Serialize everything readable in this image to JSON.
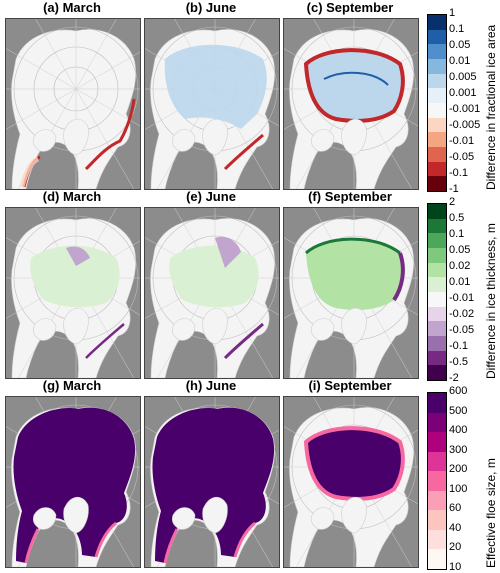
{
  "rows": [
    {
      "id": "area",
      "panels": [
        {
          "title": "(a) March"
        },
        {
          "title": "(b) June"
        },
        {
          "title": "(c) September"
        }
      ],
      "colorbar": {
        "label": "Difference in fractional ice area",
        "ticks": [
          "1",
          "0.1",
          "0.05",
          "0.01",
          "0.005",
          "0.001",
          "-0.001",
          "-0.005",
          "-0.01",
          "-0.05",
          "-0.1",
          "-1"
        ],
        "colors": [
          "#08306b",
          "#1f5fa8",
          "#4f8fcc",
          "#86b8dd",
          "#bcd7ec",
          "#e6f0f8",
          "#f7f7f7",
          "#fbd6c2",
          "#f4a582",
          "#e0654f",
          "#c2282a",
          "#67000d"
        ]
      }
    },
    {
      "id": "thickness",
      "panels": [
        {
          "title": "(d) March"
        },
        {
          "title": "(e) June"
        },
        {
          "title": "(f) September"
        }
      ],
      "colorbar": {
        "label": "Difference in ice thickness, m",
        "ticks": [
          "2",
          "0.5",
          "0.1",
          "0.05",
          "0.02",
          "0.01",
          "-0.01",
          "-0.02",
          "-0.05",
          "-0.1",
          "-0.5",
          "-2"
        ],
        "colors": [
          "#00441b",
          "#1b7837",
          "#4ca75b",
          "#7fc97f",
          "#b3e2a5",
          "#d9f0d3",
          "#f7f7f7",
          "#e7d4e8",
          "#c2a5cf",
          "#9970ab",
          "#762a83",
          "#40004b"
        ]
      }
    },
    {
      "id": "floesize",
      "panels": [
        {
          "title": "(g) March"
        },
        {
          "title": "(h) June"
        },
        {
          "title": "(i) September"
        }
      ],
      "colorbar": {
        "label": "Effective floe size, m",
        "ticks": [
          "600",
          "500",
          "400",
          "300",
          "200",
          "100",
          "60",
          "40",
          "20",
          "10"
        ],
        "colors": [
          "#49006a",
          "#7a0177",
          "#ae017e",
          "#dd3497",
          "#f768a1",
          "#fa9fb5",
          "#fcc5c0",
          "#fde0dd",
          "#fff7f3"
        ]
      }
    }
  ],
  "chart_data": {
    "type": "heatmap",
    "description_free": true,
    "panels": [
      {
        "panel": "(a) March",
        "variable": "Difference in fractional ice area",
        "month": "March"
      },
      {
        "panel": "(b) June",
        "variable": "Difference in fractional ice area",
        "month": "June"
      },
      {
        "panel": "(c) September",
        "variable": "Difference in fractional ice area",
        "month": "September"
      },
      {
        "panel": "(d) March",
        "variable": "Difference in ice thickness, m",
        "month": "March"
      },
      {
        "panel": "(e) June",
        "variable": "Difference in ice thickness, m",
        "month": "June"
      },
      {
        "panel": "(f) September",
        "variable": "Difference in ice thickness, m",
        "month": "September"
      },
      {
        "panel": "(g) March",
        "variable": "Effective floe size, m",
        "month": "March"
      },
      {
        "panel": "(h) June",
        "variable": "Effective floe size, m",
        "month": "June"
      },
      {
        "panel": "(i) September",
        "variable": "Effective floe size, m",
        "month": "September"
      }
    ],
    "colorbar_levels": {
      "area": [
        1,
        0.1,
        0.05,
        0.01,
        0.005,
        0.001,
        -0.001,
        -0.005,
        -0.01,
        -0.05,
        -0.1,
        -1
      ],
      "thickness": [
        2,
        0.5,
        0.1,
        0.05,
        0.02,
        0.01,
        -0.01,
        -0.02,
        -0.05,
        -0.1,
        -0.5,
        -2
      ],
      "floesize": [
        600,
        500,
        400,
        300,
        200,
        100,
        60,
        40,
        20,
        10
      ]
    }
  }
}
